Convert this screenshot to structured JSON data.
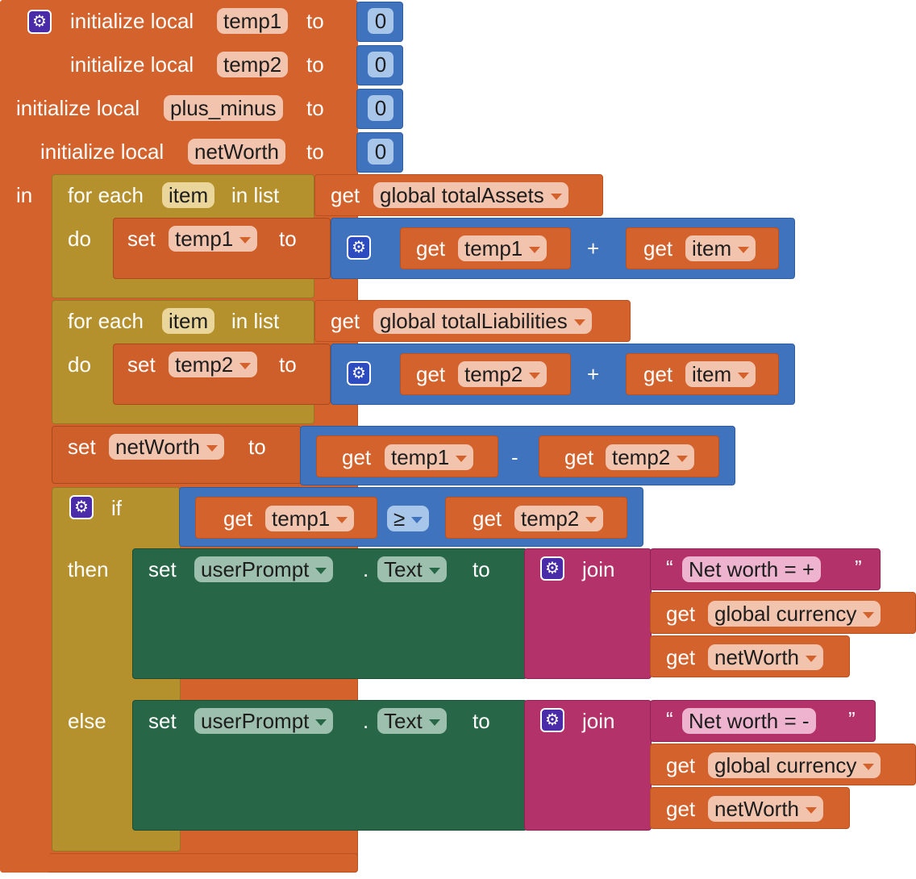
{
  "init": {
    "label": "initialize local",
    "to_label": "to",
    "in_label": "in",
    "vars": [
      {
        "name": "temp1",
        "value": "0"
      },
      {
        "name": "temp2",
        "value": "0"
      },
      {
        "name": "plus_minus",
        "value": "0"
      },
      {
        "name": "netWorth",
        "value": "0"
      }
    ]
  },
  "loops": [
    {
      "for_label": "for each",
      "var": "item",
      "in_list_label": "in list",
      "do_label": "do",
      "get_label": "get",
      "list": "global totalAssets",
      "set_label": "set",
      "set_var": "temp1",
      "to_label": "to",
      "op": "+",
      "left": "temp1",
      "right": "item"
    },
    {
      "for_label": "for each",
      "var": "item",
      "in_list_label": "in list",
      "do_label": "do",
      "get_label": "get",
      "list": "global totalLiabilities",
      "set_label": "set",
      "set_var": "temp2",
      "to_label": "to",
      "op": "+",
      "left": "temp2",
      "right": "item"
    }
  ],
  "set_networth": {
    "set_label": "set",
    "var": "netWorth",
    "to_label": "to",
    "get_label": "get",
    "left": "temp1",
    "op": "-",
    "right": "temp2"
  },
  "if_block": {
    "if_label": "if",
    "then_label": "then",
    "else_label": "else",
    "get_label": "get",
    "left": "temp1",
    "op": "≥",
    "right": "temp2",
    "branches": [
      {
        "set_label": "set",
        "component": "userPrompt",
        "dot": ".",
        "property": "Text",
        "to_label": "to",
        "join_label": "join",
        "open_quote": "“",
        "text": "Net worth = +",
        "close_quote": "”",
        "get_label": "get",
        "currency": "global currency",
        "var": "netWorth"
      },
      {
        "set_label": "set",
        "component": "userPrompt",
        "dot": ".",
        "property": "Text",
        "to_label": "to",
        "join_label": "join",
        "open_quote": "“",
        "text": "Net worth = -",
        "close_quote": "”",
        "get_label": "get",
        "currency": "global currency",
        "var": "netWorth"
      }
    ]
  },
  "colors": {
    "variables": "#d4622d",
    "control": "#b5912e",
    "math": "#3f73bd",
    "component": "#276646",
    "text": "#b3326a"
  },
  "icons": {
    "mutator": "gear-icon"
  }
}
